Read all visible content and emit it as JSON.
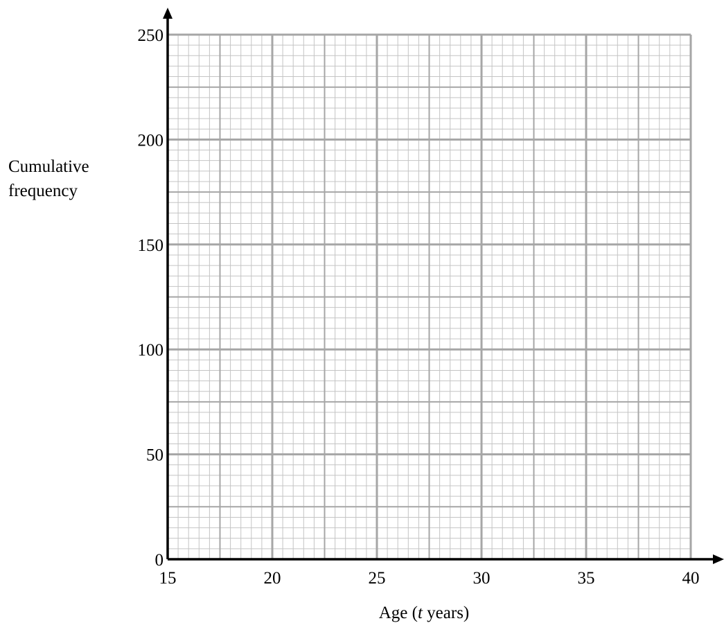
{
  "chart_data": {
    "type": "line",
    "title": "",
    "xlabel_prefix": "Age (",
    "xlabel_var": "t",
    "xlabel_suffix": " years)",
    "ylabel_lines": [
      "Cumulative",
      "frequency"
    ],
    "xlim": [
      15,
      40
    ],
    "ylim": [
      0,
      250
    ],
    "x_ticks": [
      15,
      20,
      25,
      30,
      35,
      40
    ],
    "y_ticks": [
      0,
      50,
      100,
      150,
      200,
      250
    ],
    "grid": {
      "major_x_step": 5,
      "mid_x_step": 2.5,
      "minor_x_step": 0.5,
      "major_y_step": 50,
      "mid_y_step": 25,
      "minor_y_step": 5
    },
    "series": []
  },
  "colors": {
    "minor_grid": "#c4c4c4",
    "major_grid": "#a6a6a6",
    "axis": "#000000"
  }
}
